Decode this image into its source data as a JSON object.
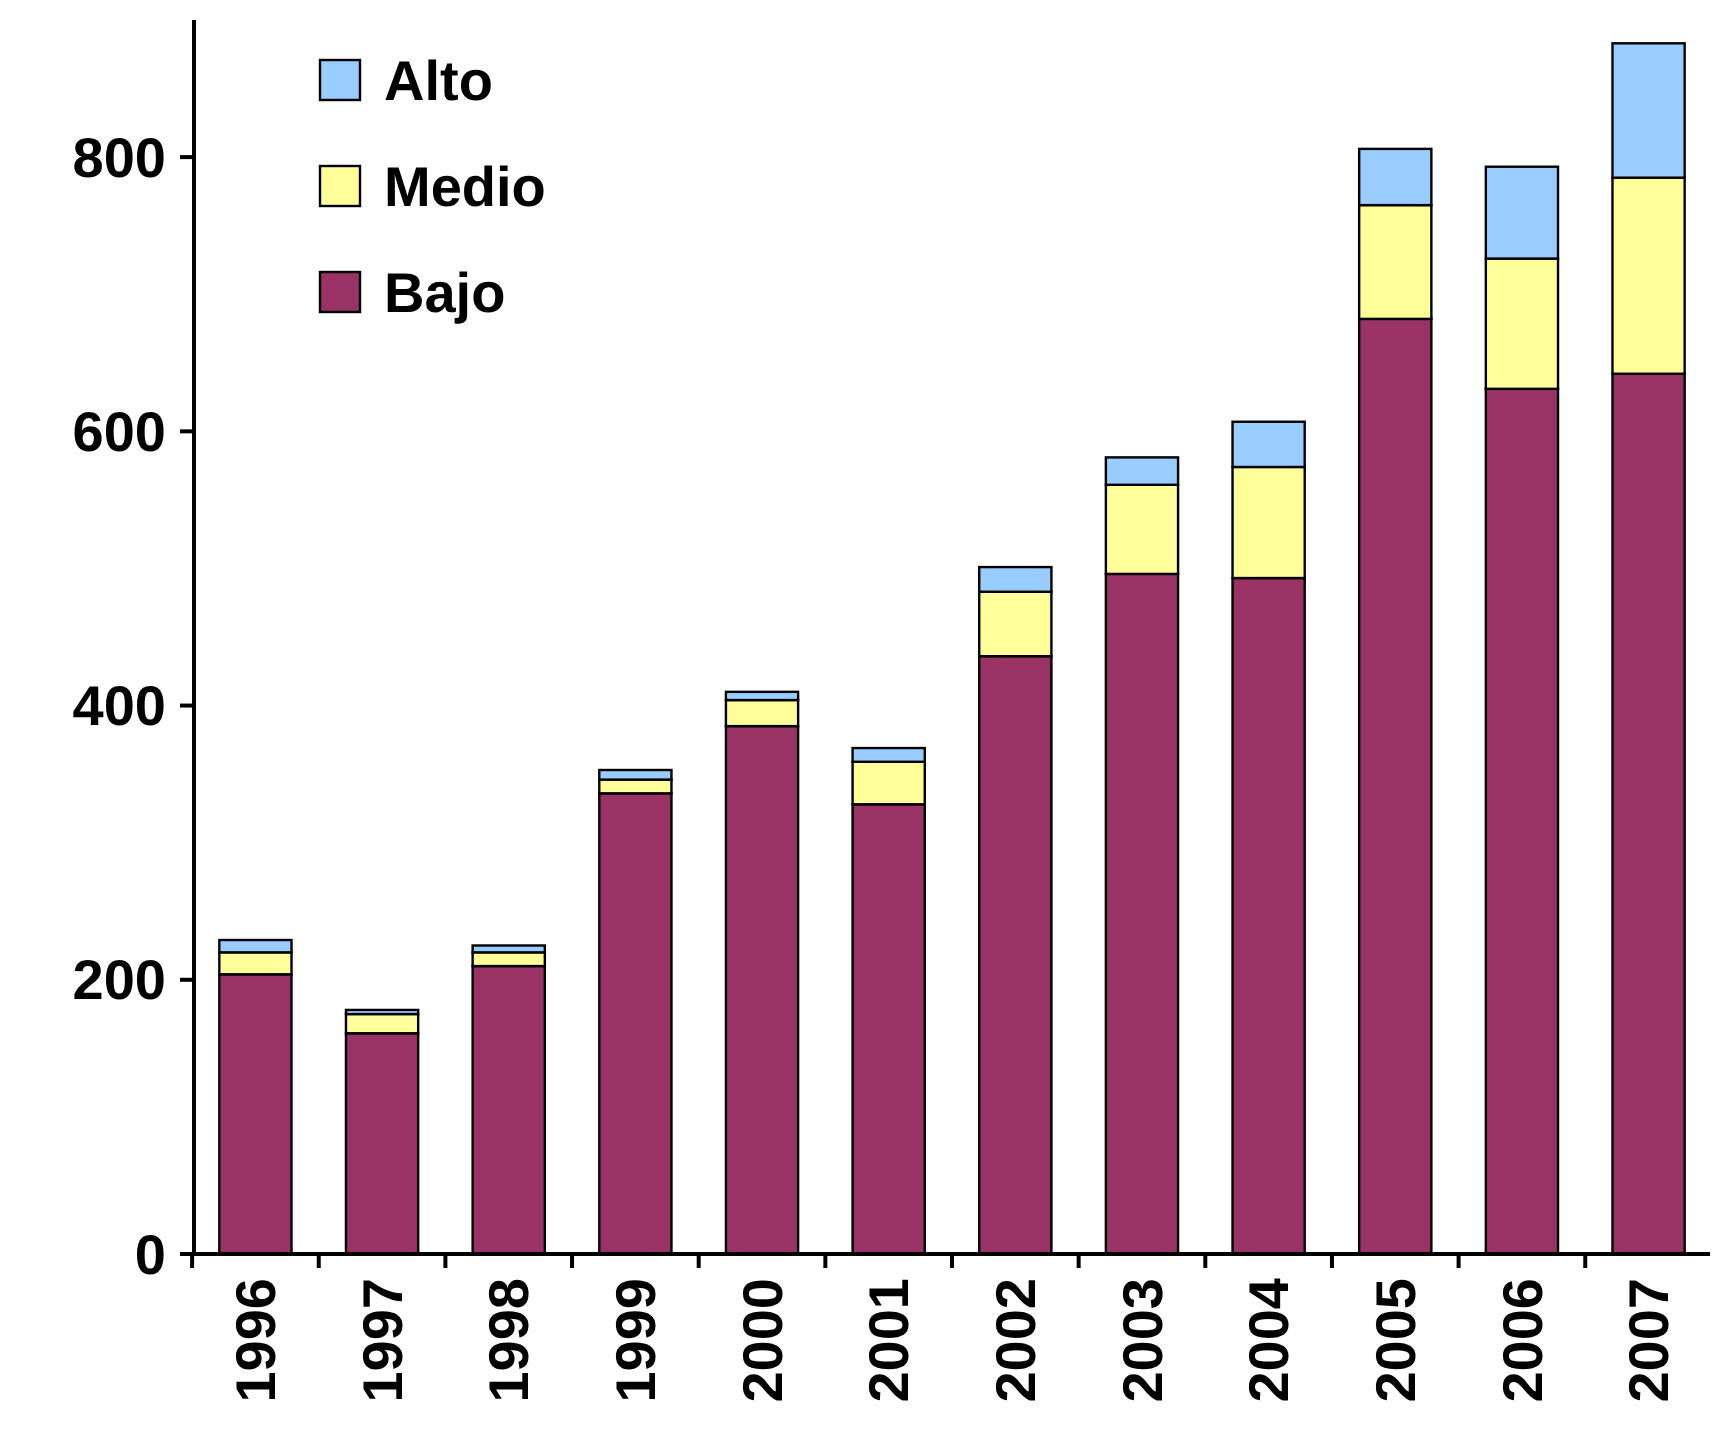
{
  "chart_data": {
    "type": "bar",
    "stacked": true,
    "categories": [
      "1996",
      "1997",
      "1998",
      "1999",
      "2000",
      "2001",
      "2002",
      "2003",
      "2004",
      "2005",
      "2006",
      "2007"
    ],
    "series": [
      {
        "name": "Bajo",
        "color": "#993366",
        "values": [
          204,
          161,
          210,
          336,
          385,
          328,
          436,
          496,
          493,
          682,
          631,
          642
        ]
      },
      {
        "name": "Medio",
        "color": "#ffff99",
        "values": [
          16,
          14,
          10,
          10,
          19,
          31,
          47,
          65,
          81,
          83,
          95,
          143
        ]
      },
      {
        "name": "Alto",
        "color": "#99ccff",
        "values": [
          9,
          3,
          5,
          7,
          6,
          10,
          18,
          20,
          33,
          41,
          67,
          98
        ]
      }
    ],
    "ylim": [
      0,
      900
    ],
    "yticks": [
      0,
      200,
      400,
      600,
      800
    ],
    "grid": false,
    "legend": "top left"
  }
}
